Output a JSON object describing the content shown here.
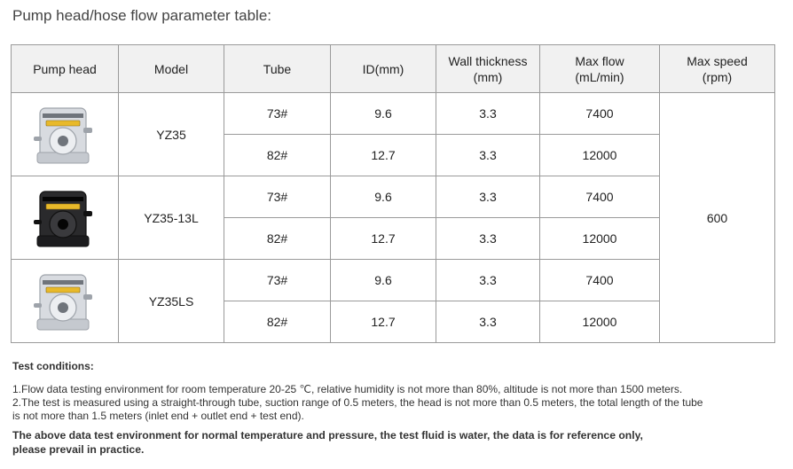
{
  "title": "Pump head/hose flow parameter table:",
  "headers": {
    "pump_head": "Pump head",
    "model": "Model",
    "tube": "Tube",
    "id": "ID(mm)",
    "wall_line1": "Wall thickness",
    "wall_line2": "(mm)",
    "flow_line1": "Max flow",
    "flow_line2": "(mL/min)",
    "speed_line1": "Max speed",
    "speed_line2": "(rpm)"
  },
  "max_speed": "600",
  "groups": [
    {
      "model": "YZ35",
      "pump_color": "silver",
      "rows": [
        {
          "tube": "73#",
          "id": "9.6",
          "wall": "3.3",
          "flow": "7400"
        },
        {
          "tube": "82#",
          "id": "12.7",
          "wall": "3.3",
          "flow": "12000"
        }
      ]
    },
    {
      "model": "YZ35-13L",
      "pump_color": "black",
      "rows": [
        {
          "tube": "73#",
          "id": "9.6",
          "wall": "3.3",
          "flow": "7400"
        },
        {
          "tube": "82#",
          "id": "12.7",
          "wall": "3.3",
          "flow": "12000"
        }
      ]
    },
    {
      "model": "YZ35LS",
      "pump_color": "silver",
      "rows": [
        {
          "tube": "73#",
          "id": "9.6",
          "wall": "3.3",
          "flow": "7400"
        },
        {
          "tube": "82#",
          "id": "12.7",
          "wall": "3.3",
          "flow": "12000"
        }
      ]
    }
  ],
  "notes": {
    "heading": "Test conditions:",
    "line1": "1.Flow data testing environment for room temperature 20-25 ℃, relative humidity is not more than 80%, altitude is not more than 1500 meters.",
    "line2": "2.The test is measured using a straight-through tube, suction range of 0.5 meters, the head is not more than 0.5 meters, the total length of the tube",
    "line3": "is not more than 1.5 meters (inlet end + outlet end + test end).",
    "bold1": "The above data test environment for normal temperature and pressure, the test fluid is water, the data is for reference only,",
    "bold2": "please prevail in practice."
  }
}
